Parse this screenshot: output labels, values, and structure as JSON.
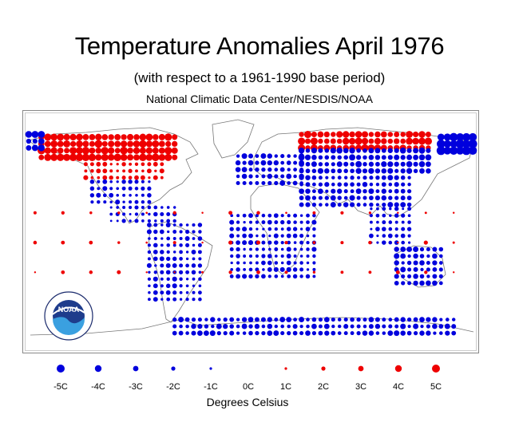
{
  "header": {
    "title": "Temperature Anomalies April 1976",
    "subtitle": "(with respect to a 1961-1990 base period)",
    "credit": "National Climatic Data Center/NESDIS/NOAA"
  },
  "logo": {
    "text": "NOAA"
  },
  "colors": {
    "cold": "#0000dd",
    "warm": "#ee0000",
    "land": "#777777",
    "frame": "#888888"
  },
  "legend": {
    "title": "Degrees Celsius",
    "items": [
      {
        "label": "-5C",
        "value": -5
      },
      {
        "label": "-4C",
        "value": -4
      },
      {
        "label": "-3C",
        "value": -3
      },
      {
        "label": "-2C",
        "value": -2
      },
      {
        "label": "-1C",
        "value": -1
      },
      {
        "label": "0C",
        "value": 0
      },
      {
        "label": "1C",
        "value": 1
      },
      {
        "label": "2C",
        "value": 2
      },
      {
        "label": "3C",
        "value": 3
      },
      {
        "label": "4C",
        "value": 4
      },
      {
        "label": "5C",
        "value": 5
      }
    ]
  },
  "map_data": {
    "type": "scatter",
    "projection": "equirectangular",
    "lon_range": [
      -180,
      180
    ],
    "lat_range": [
      -90,
      90
    ],
    "grid": false,
    "regions": [
      {
        "name": "north-america-north",
        "lon": [
          -165,
          -60
        ],
        "lat": [
          55,
          72
        ],
        "value": 3.5
      },
      {
        "name": "north-america-mid",
        "lon": [
          -130,
          -70
        ],
        "lat": [
          40,
          52
        ],
        "value": 1.5
      },
      {
        "name": "north-america-south",
        "lon": [
          -125,
          -80
        ],
        "lat": [
          22,
          38
        ],
        "value": -1.5
      },
      {
        "name": "caribbean",
        "lon": [
          -110,
          -60
        ],
        "lat": [
          8,
          20
        ],
        "value": -1.2
      },
      {
        "name": "south-america",
        "lon": [
          -80,
          -40
        ],
        "lat": [
          -50,
          5
        ],
        "value": -1.5
      },
      {
        "name": "greenland-arctic-west",
        "lon": [
          -180,
          -165
        ],
        "lat": [
          62,
          72
        ],
        "value": -3
      },
      {
        "name": "europe",
        "lon": [
          -10,
          40
        ],
        "lat": [
          36,
          60
        ],
        "value": -2
      },
      {
        "name": "arctic-russia",
        "lon": [
          40,
          140
        ],
        "lat": [
          62,
          75
        ],
        "value": 3.2
      },
      {
        "name": "russia-central",
        "lon": [
          40,
          140
        ],
        "lat": [
          45,
          60
        ],
        "value": -2.5
      },
      {
        "name": "middle-east-asia",
        "lon": [
          40,
          125
        ],
        "lat": [
          20,
          42
        ],
        "value": -2
      },
      {
        "name": "africa",
        "lon": [
          -15,
          50
        ],
        "lat": [
          -33,
          15
        ],
        "value": -1.5
      },
      {
        "name": "south-east-asia",
        "lon": [
          95,
          125
        ],
        "lat": [
          -8,
          20
        ],
        "value": -1.3
      },
      {
        "name": "australia",
        "lon": [
          115,
          152
        ],
        "lat": [
          -38,
          -12
        ],
        "value": -2
      },
      {
        "name": "east-siberia",
        "lon": [
          150,
          180
        ],
        "lat": [
          60,
          70
        ],
        "value": -4.5
      },
      {
        "name": "pacific-islands",
        "lon": [
          -170,
          175
        ],
        "lat": [
          -30,
          30
        ],
        "value": 1
      },
      {
        "name": "antarctica",
        "lon": [
          -60,
          160
        ],
        "lat": [
          -75,
          -65
        ],
        "value": -2
      }
    ]
  }
}
